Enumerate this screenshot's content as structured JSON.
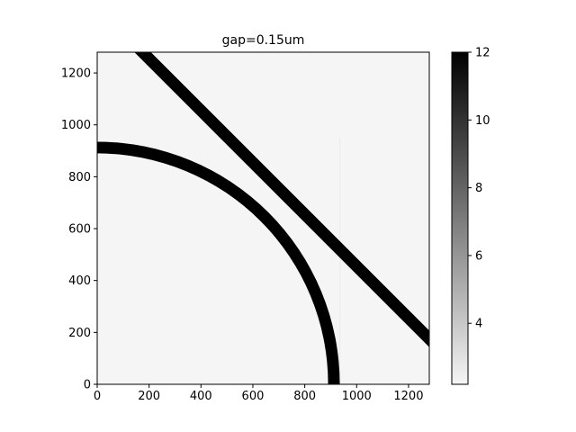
{
  "chart_data": {
    "type": "heatmap",
    "title": "gap=0.15um",
    "xlabel": "",
    "ylabel": "",
    "xlim": [
      0,
      1280
    ],
    "ylim": [
      0,
      1280
    ],
    "x_ticks": [
      0,
      200,
      400,
      600,
      800,
      1000,
      1200
    ],
    "y_ticks": [
      0,
      200,
      400,
      600,
      800,
      1000,
      1200
    ],
    "colormap": "gray_r",
    "background_value": 2.2,
    "feature_value": 12,
    "colorbar": {
      "range": [
        2.2,
        12
      ],
      "ticks": [
        4,
        6,
        8,
        10,
        12
      ]
    },
    "features": {
      "ring_arc": {
        "center": [
          0,
          0
        ],
        "inner_radius": 890,
        "outer_radius": 935,
        "straight_section": {
          "x_from": 0,
          "x_to": 120,
          "y_from": 0,
          "y_to": 120
        }
      },
      "waveguide": {
        "from": [
          175,
          1280
        ],
        "to": [
          1280,
          175
        ],
        "width": 45
      },
      "faint_line": {
        "x": 935,
        "y_from": 0,
        "y_to": 950,
        "value": 2.6
      }
    }
  }
}
